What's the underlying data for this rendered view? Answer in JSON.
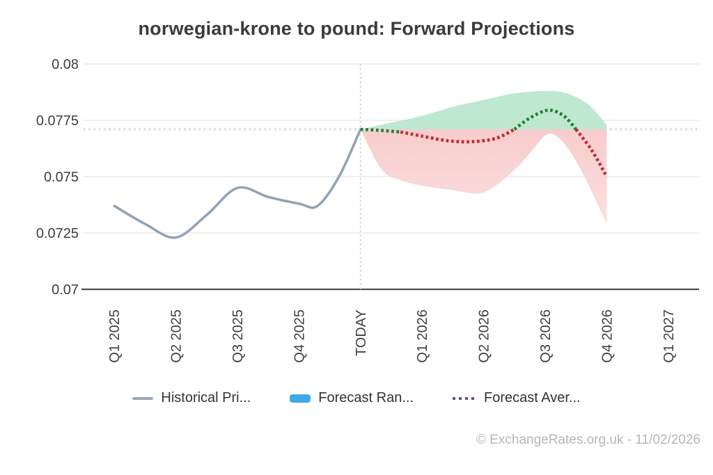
{
  "page": {
    "title": "norwegian-krone to pound: Forward Projections",
    "footer": "© ExchangeRates.org.uk - 11/02/2026"
  },
  "legend": {
    "items": [
      {
        "label": "Historical Pri...",
        "marker": "line",
        "color": "#9aa8ba"
      },
      {
        "label": "Forecast Ran...",
        "marker": "band",
        "color": "#41a9ea"
      },
      {
        "label": "Forecast Aver...",
        "marker": "dotted",
        "color": "#55589d"
      }
    ]
  },
  "chart_data": {
    "type": "line",
    "title": "norwegian-krone to pound: Forward Projections",
    "x_categories": [
      "Q1 2025",
      "Q2 2025",
      "Q3 2025",
      "Q4 2025",
      "TODAY",
      "Q1 2026",
      "Q2 2026",
      "Q3 2026",
      "Q4 2026",
      "Q1 2027"
    ],
    "ylim": [
      0.07,
      0.08
    ],
    "yticks": [
      0.07,
      0.0725,
      0.075,
      0.0775,
      0.08
    ],
    "ytick_labels": [
      "0.07",
      "0.0725",
      "0.075",
      "0.0775",
      "0.08"
    ],
    "grid": true,
    "legend_position": "bottom",
    "today_index": 4,
    "forecast_end_index": 8,
    "current_rate": 0.0771,
    "series": {
      "historical": {
        "name": "Historical Price",
        "color": "#94a3b5",
        "points": [
          [
            0,
            0.0737
          ],
          [
            0.5,
            0.0729
          ],
          [
            1,
            0.0723
          ],
          [
            1.5,
            0.0733
          ],
          [
            2,
            0.0745
          ],
          [
            2.5,
            0.0741
          ],
          [
            3,
            0.0738
          ],
          [
            3.3,
            0.0737
          ],
          [
            3.65,
            0.075
          ],
          [
            4,
            0.0771
          ]
        ]
      },
      "forecast_range": {
        "name": "Forecast Range",
        "fill_above": "#b7e6cb",
        "fill_below_top": "#f8c9c9",
        "fill_below_bottom": "#fbdede",
        "upper": [
          [
            4,
            0.0771
          ],
          [
            4.5,
            0.0774
          ],
          [
            5,
            0.0777
          ],
          [
            5.5,
            0.0781
          ],
          [
            6,
            0.0784
          ],
          [
            6.5,
            0.0787
          ],
          [
            7,
            0.0788
          ],
          [
            7.35,
            0.0787
          ],
          [
            7.7,
            0.0782
          ],
          [
            8,
            0.0773
          ]
        ],
        "lower": [
          [
            4,
            0.0771
          ],
          [
            4.35,
            0.0753
          ],
          [
            4.7,
            0.0748
          ],
          [
            5,
            0.0746
          ],
          [
            5.5,
            0.0744
          ],
          [
            6,
            0.0743
          ],
          [
            6.5,
            0.0753
          ],
          [
            6.8,
            0.0762
          ],
          [
            7.05,
            0.0769
          ],
          [
            7.3,
            0.0765
          ],
          [
            7.6,
            0.0752
          ],
          [
            8,
            0.0729
          ]
        ]
      },
      "forecast_average": {
        "name": "Forecast Average",
        "color_above": "#1e7e35",
        "color_below": "#c1272d",
        "segments": [
          {
            "color": "#1e7e35",
            "points": [
              [
                4,
                0.0771
              ],
              [
                4.3,
                0.07706
              ],
              [
                4.65,
                0.07698
              ]
            ]
          },
          {
            "color": "#c1272d",
            "points": [
              [
                4.65,
                0.07698
              ],
              [
                5,
                0.0768
              ],
              [
                5.4,
                0.0766
              ],
              [
                5.8,
                0.07655
              ],
              [
                6.2,
                0.0767
              ],
              [
                6.5,
                0.0771
              ]
            ]
          },
          {
            "color": "#1e7e35",
            "points": [
              [
                6.5,
                0.0771
              ],
              [
                6.75,
                0.0776
              ],
              [
                7.05,
                0.07795
              ],
              [
                7.3,
                0.0777
              ],
              [
                7.5,
                0.0771
              ]
            ]
          },
          {
            "color": "#c1272d",
            "points": [
              [
                7.5,
                0.0771
              ],
              [
                7.75,
                0.0762
              ],
              [
                8,
                0.075
              ]
            ]
          }
        ]
      }
    },
    "guides": {
      "grid_color": "#eaeaea",
      "axis_color": "#4f4f4f",
      "dotted_color": "#d9d9d9",
      "tick_text_color": "#3f3f3f"
    }
  }
}
